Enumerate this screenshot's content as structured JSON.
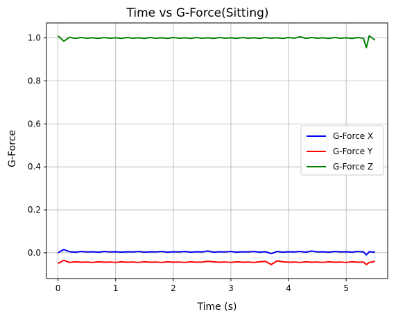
{
  "chart_data": {
    "type": "line",
    "title": "Time vs G-Force(Sitting)",
    "xlabel": "Time (s)",
    "ylabel": "G-Force",
    "xlim": [
      -0.2,
      5.72
    ],
    "ylim": [
      -0.12,
      1.07
    ],
    "xticks": [
      0,
      1,
      2,
      3,
      4,
      5
    ],
    "yticks": [
      0.0,
      0.2,
      0.4,
      0.6,
      0.8,
      1.0
    ],
    "xtick_labels": [
      "0",
      "1",
      "2",
      "3",
      "4",
      "5"
    ],
    "ytick_labels": [
      "0.0",
      "0.2",
      "0.4",
      "0.6",
      "0.8",
      "1.0"
    ],
    "grid": true,
    "legend_position": "center-right",
    "x": [
      0.0,
      0.1,
      0.2,
      0.3,
      0.4,
      0.5,
      0.6,
      0.7,
      0.8,
      0.9,
      1.0,
      1.1,
      1.2,
      1.3,
      1.4,
      1.5,
      1.6,
      1.7,
      1.8,
      1.9,
      2.0,
      2.1,
      2.2,
      2.3,
      2.4,
      2.5,
      2.6,
      2.7,
      2.8,
      2.9,
      3.0,
      3.1,
      3.2,
      3.3,
      3.4,
      3.5,
      3.6,
      3.7,
      3.8,
      3.9,
      4.0,
      4.1,
      4.2,
      4.3,
      4.4,
      4.5,
      4.6,
      4.7,
      4.8,
      4.9,
      5.0,
      5.1,
      5.2,
      5.3,
      5.35,
      5.4,
      5.5
    ],
    "series": [
      {
        "name": "G-Force X",
        "color": "#0000ff",
        "values": [
          0.0,
          0.015,
          0.005,
          0.003,
          0.006,
          0.004,
          0.005,
          0.003,
          0.006,
          0.004,
          0.005,
          0.003,
          0.005,
          0.004,
          0.006,
          0.003,
          0.005,
          0.004,
          0.006,
          0.003,
          0.005,
          0.004,
          0.006,
          0.003,
          0.005,
          0.004,
          0.008,
          0.003,
          0.005,
          0.004,
          0.006,
          0.003,
          0.005,
          0.004,
          0.006,
          0.003,
          0.005,
          -0.004,
          0.006,
          0.003,
          0.005,
          0.004,
          0.006,
          0.003,
          0.008,
          0.004,
          0.005,
          0.003,
          0.006,
          0.004,
          0.005,
          0.003,
          0.006,
          0.004,
          -0.01,
          0.005,
          0.003
        ]
      },
      {
        "name": "G-Force Y",
        "color": "#ff0000",
        "values": [
          -0.05,
          -0.035,
          -0.045,
          -0.042,
          -0.044,
          -0.043,
          -0.045,
          -0.042,
          -0.044,
          -0.043,
          -0.045,
          -0.042,
          -0.044,
          -0.043,
          -0.045,
          -0.042,
          -0.044,
          -0.043,
          -0.045,
          -0.042,
          -0.044,
          -0.043,
          -0.045,
          -0.042,
          -0.044,
          -0.043,
          -0.04,
          -0.042,
          -0.044,
          -0.043,
          -0.045,
          -0.042,
          -0.044,
          -0.043,
          -0.045,
          -0.042,
          -0.04,
          -0.055,
          -0.038,
          -0.042,
          -0.044,
          -0.043,
          -0.045,
          -0.042,
          -0.044,
          -0.043,
          -0.045,
          -0.042,
          -0.044,
          -0.043,
          -0.045,
          -0.042,
          -0.044,
          -0.043,
          -0.055,
          -0.045,
          -0.04
        ]
      },
      {
        "name": "G-Force Z",
        "color": "#008000",
        "values": [
          1.01,
          0.985,
          1.003,
          0.998,
          1.002,
          0.999,
          1.001,
          0.998,
          1.002,
          0.999,
          1.001,
          0.998,
          1.002,
          0.999,
          1.001,
          0.998,
          1.002,
          0.999,
          1.001,
          0.998,
          1.002,
          0.999,
          1.001,
          0.998,
          1.002,
          0.999,
          1.001,
          0.998,
          1.002,
          0.999,
          1.001,
          0.998,
          1.002,
          0.999,
          1.001,
          0.998,
          1.002,
          0.999,
          1.001,
          0.998,
          1.002,
          0.999,
          1.006,
          0.998,
          1.002,
          0.999,
          1.001,
          0.998,
          1.002,
          0.999,
          1.001,
          0.998,
          1.002,
          0.999,
          0.955,
          1.01,
          0.99
        ]
      }
    ]
  }
}
